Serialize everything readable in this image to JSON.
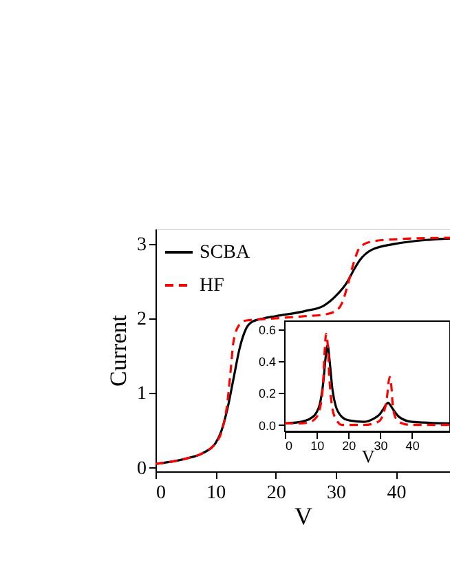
{
  "chart_data": [
    {
      "type": "line",
      "xlabel": "V",
      "ylabel": "Current",
      "xlim": [
        0,
        49
      ],
      "xticks": [
        0,
        10,
        20,
        30,
        40
      ],
      "ylim": [
        -0.05,
        3.2
      ],
      "yticks": [
        0,
        1,
        2,
        3
      ],
      "grid": false,
      "legend": "top left",
      "series": [
        {
          "name": "SCBA",
          "color": "#000000",
          "line_style": "solid",
          "x": [
            0,
            5,
            8,
            10,
            11,
            12,
            13,
            14,
            15,
            16,
            18,
            20,
            25,
            28,
            30,
            32,
            33,
            34,
            36,
            40,
            45,
            49
          ],
          "values": [
            0.05,
            0.12,
            0.2,
            0.33,
            0.5,
            0.8,
            1.2,
            1.6,
            1.85,
            1.95,
            2.0,
            2.03,
            2.1,
            2.17,
            2.3,
            2.5,
            2.65,
            2.78,
            2.92,
            3.0,
            3.05,
            3.07
          ]
        },
        {
          "name": "HF",
          "color": "#ff0000",
          "line_style": "dashed",
          "x": [
            0,
            5,
            8,
            10,
            11,
            12,
            12.5,
            13,
            14,
            15,
            20,
            25,
            28,
            30,
            31,
            32,
            33,
            34,
            36,
            40,
            49
          ],
          "values": [
            0.05,
            0.12,
            0.2,
            0.33,
            0.48,
            0.9,
            1.3,
            1.7,
            1.92,
            1.97,
            2.0,
            2.03,
            2.05,
            2.1,
            2.2,
            2.45,
            2.75,
            2.95,
            3.03,
            3.06,
            3.08
          ]
        }
      ]
    },
    {
      "type": "line",
      "xlabel": "V",
      "xlim": [
        0,
        52
      ],
      "xticks": [
        0,
        10,
        20,
        30,
        40
      ],
      "ylim": [
        -0.04,
        0.65
      ],
      "yticks": [
        {
          "value": 0,
          "label": "0.0"
        },
        0.2,
        0.4,
        0.6
      ],
      "grid": false,
      "series": [
        {
          "color": "#000000",
          "line_style": "solid",
          "x": [
            0,
            5,
            8,
            10,
            11,
            12,
            13,
            13.5,
            14,
            15,
            16,
            18,
            20,
            25,
            28,
            30,
            31,
            32,
            32.5,
            33,
            34,
            36,
            40,
            52
          ],
          "values": [
            0.01,
            0.02,
            0.04,
            0.08,
            0.13,
            0.25,
            0.45,
            0.5,
            0.42,
            0.22,
            0.12,
            0.05,
            0.03,
            0.02,
            0.04,
            0.07,
            0.1,
            0.13,
            0.14,
            0.13,
            0.1,
            0.05,
            0.02,
            0.01
          ]
        },
        {
          "color": "#ff0000",
          "line_style": "dashed",
          "x": [
            0,
            5,
            8,
            10,
            11,
            12,
            12.5,
            13,
            13.5,
            14,
            15,
            16,
            18,
            20,
            25,
            28,
            30,
            31,
            32,
            33,
            33.5,
            34,
            35,
            37,
            40,
            52
          ],
          "values": [
            0.01,
            0.01,
            0.02,
            0.05,
            0.1,
            0.25,
            0.45,
            0.57,
            0.5,
            0.3,
            0.1,
            0.04,
            0.0,
            0.0,
            0.0,
            0.01,
            0.03,
            0.07,
            0.15,
            0.3,
            0.25,
            0.12,
            0.04,
            0.01,
            0.0,
            0.0
          ]
        }
      ]
    }
  ]
}
